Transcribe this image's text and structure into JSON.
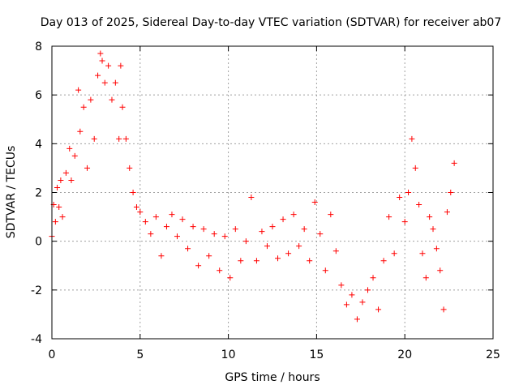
{
  "chart_data": {
    "type": "scatter",
    "title": "Day 013 of 2025, Sidereal Day-to-day VTEC variation (SDTVAR) for receiver ab07",
    "xlabel": "GPS time / hours",
    "ylabel": "SDTVAR / TECUs",
    "xlim": [
      0,
      25
    ],
    "ylim": [
      -4,
      8
    ],
    "xticks": [
      0,
      5,
      10,
      15,
      20,
      25
    ],
    "yticks": [
      -4,
      -2,
      0,
      2,
      4,
      6,
      8
    ],
    "grid": true,
    "marker": "+",
    "color": "#ff0000",
    "series": [
      {
        "name": "SDTVAR",
        "x": [
          0.0,
          0.1,
          0.2,
          0.3,
          0.4,
          0.5,
          0.6,
          0.8,
          1.0,
          1.1,
          1.3,
          1.5,
          1.6,
          1.8,
          2.0,
          2.2,
          2.4,
          2.6,
          2.75,
          2.85,
          3.0,
          3.2,
          3.4,
          3.6,
          3.8,
          3.9,
          4.0,
          4.2,
          4.4,
          4.6,
          4.8,
          5.0,
          5.3,
          5.6,
          5.9,
          6.2,
          6.5,
          6.8,
          7.1,
          7.4,
          7.7,
          8.0,
          8.3,
          8.6,
          8.9,
          9.2,
          9.5,
          9.8,
          10.1,
          10.4,
          10.7,
          11.0,
          11.3,
          11.6,
          11.9,
          12.2,
          12.5,
          12.8,
          13.1,
          13.4,
          13.7,
          14.0,
          14.3,
          14.6,
          14.9,
          15.2,
          15.5,
          15.8,
          16.1,
          16.4,
          16.7,
          17.0,
          17.3,
          17.6,
          17.9,
          18.2,
          18.5,
          18.8,
          19.1,
          19.4,
          19.7,
          20.0,
          20.2,
          20.4,
          20.6,
          20.8,
          21.0,
          21.2,
          21.4,
          21.6,
          21.8,
          22.0,
          22.2,
          22.4,
          22.6,
          22.8
        ],
        "y": [
          0.2,
          1.5,
          0.8,
          2.2,
          1.4,
          2.5,
          1.0,
          2.8,
          3.8,
          2.5,
          3.5,
          6.2,
          4.5,
          5.5,
          3.0,
          5.8,
          4.2,
          6.8,
          7.7,
          7.4,
          6.5,
          7.2,
          5.8,
          6.5,
          4.2,
          7.2,
          5.5,
          4.2,
          3.0,
          2.0,
          1.4,
          1.2,
          0.8,
          0.3,
          1.0,
          -0.6,
          0.6,
          1.1,
          0.2,
          0.9,
          -0.3,
          0.6,
          -1.0,
          0.5,
          -0.6,
          0.3,
          -1.2,
          0.2,
          -1.5,
          0.5,
          -0.8,
          0.0,
          1.8,
          -0.8,
          0.4,
          -0.2,
          0.6,
          -0.7,
          0.9,
          -0.5,
          1.1,
          -0.2,
          0.5,
          -0.8,
          1.6,
          0.3,
          -1.2,
          1.1,
          -0.4,
          -1.8,
          -2.6,
          -2.2,
          -3.2,
          -2.5,
          -2.0,
          -1.5,
          -2.8,
          -0.8,
          1.0,
          -0.5,
          1.8,
          0.8,
          2.0,
          4.2,
          3.0,
          1.5,
          -0.5,
          -1.5,
          1.0,
          0.5,
          -0.3,
          -1.2,
          -2.8,
          1.2,
          2.0,
          3.2
        ]
      }
    ]
  }
}
